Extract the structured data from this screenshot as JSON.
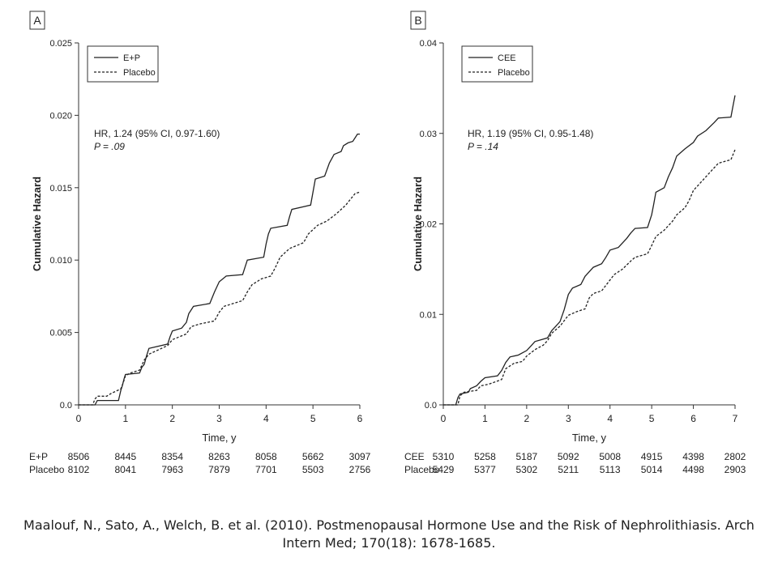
{
  "chart_data": [
    {
      "type": "line",
      "panel_label": "A",
      "xlabel": "Time, y",
      "ylabel": "Cumulative Hazard",
      "xlim": [
        0,
        6
      ],
      "ylim": [
        0,
        0.025
      ],
      "x_ticks": [
        "0",
        "1",
        "2",
        "3",
        "4",
        "5",
        "6"
      ],
      "y_ticks": [
        "0.0",
        "0.005",
        "0.010",
        "0.015",
        "0.020",
        "0.025"
      ],
      "legend": {
        "position": "top-left"
      },
      "annotation": {
        "hr": "HR, 1.24 (95% CI, 0.97-1.60)",
        "p": "P = .09"
      },
      "series": [
        {
          "name": "E+P",
          "style": "solid",
          "points": [
            [
              0,
              0
            ],
            [
              0.35,
              0
            ],
            [
              0.4,
              0.0003
            ],
            [
              0.85,
              0.0003
            ],
            [
              0.9,
              0.001
            ],
            [
              0.93,
              0.0013
            ],
            [
              0.97,
              0.0018
            ],
            [
              1.0,
              0.0021
            ],
            [
              1.3,
              0.0022
            ],
            [
              1.35,
              0.0026
            ],
            [
              1.4,
              0.0028
            ],
            [
              1.45,
              0.0034
            ],
            [
              1.5,
              0.0039
            ],
            [
              1.9,
              0.0042
            ],
            [
              1.95,
              0.0047
            ],
            [
              2.0,
              0.0051
            ],
            [
              2.2,
              0.0053
            ],
            [
              2.3,
              0.0057
            ],
            [
              2.35,
              0.0063
            ],
            [
              2.45,
              0.0068
            ],
            [
              2.8,
              0.007
            ],
            [
              2.9,
              0.0078
            ],
            [
              3.0,
              0.0085
            ],
            [
              3.15,
              0.0089
            ],
            [
              3.5,
              0.009
            ],
            [
              3.55,
              0.0095
            ],
            [
              3.6,
              0.01
            ],
            [
              3.95,
              0.0102
            ],
            [
              4.0,
              0.0111
            ],
            [
              4.05,
              0.0118
            ],
            [
              4.1,
              0.0122
            ],
            [
              4.45,
              0.0124
            ],
            [
              4.5,
              0.013
            ],
            [
              4.55,
              0.0135
            ],
            [
              4.95,
              0.0138
            ],
            [
              5.0,
              0.0147
            ],
            [
              5.05,
              0.0156
            ],
            [
              5.25,
              0.0158
            ],
            [
              5.35,
              0.0167
            ],
            [
              5.45,
              0.0173
            ],
            [
              5.6,
              0.0175
            ],
            [
              5.65,
              0.0179
            ],
            [
              5.75,
              0.0181
            ],
            [
              5.85,
              0.0182
            ],
            [
              5.95,
              0.0187
            ],
            [
              6.0,
              0.0187
            ]
          ]
        },
        {
          "name": "Placebo",
          "style": "dashed",
          "points": [
            [
              0,
              0
            ],
            [
              0.3,
              0
            ],
            [
              0.35,
              0.0004
            ],
            [
              0.4,
              0.0006
            ],
            [
              0.6,
              0.0006
            ],
            [
              0.7,
              0.0008
            ],
            [
              0.9,
              0.0011
            ],
            [
              0.95,
              0.0015
            ],
            [
              1.0,
              0.002
            ],
            [
              1.1,
              0.0022
            ],
            [
              1.3,
              0.0024
            ],
            [
              1.4,
              0.0031
            ],
            [
              1.5,
              0.0035
            ],
            [
              1.7,
              0.0038
            ],
            [
              1.9,
              0.0041
            ],
            [
              2.0,
              0.0045
            ],
            [
              2.3,
              0.0049
            ],
            [
              2.4,
              0.0054
            ],
            [
              2.6,
              0.0056
            ],
            [
              2.9,
              0.0058
            ],
            [
              3.0,
              0.0064
            ],
            [
              3.1,
              0.0068
            ],
            [
              3.3,
              0.007
            ],
            [
              3.5,
              0.0072
            ],
            [
              3.6,
              0.0078
            ],
            [
              3.7,
              0.0083
            ],
            [
              3.9,
              0.0087
            ],
            [
              4.1,
              0.0089
            ],
            [
              4.2,
              0.0095
            ],
            [
              4.3,
              0.0102
            ],
            [
              4.5,
              0.0108
            ],
            [
              4.8,
              0.0112
            ],
            [
              4.9,
              0.0118
            ],
            [
              5.1,
              0.0124
            ],
            [
              5.3,
              0.0127
            ],
            [
              5.5,
              0.0132
            ],
            [
              5.7,
              0.0138
            ],
            [
              5.8,
              0.0142
            ],
            [
              5.9,
              0.0146
            ],
            [
              6.0,
              0.0147
            ]
          ]
        }
      ],
      "risk_table": {
        "columns": [
          "8506",
          "8445",
          "8354",
          "8263",
          "8058",
          "5662",
          "3097"
        ],
        "rows": [
          {
            "label": "E+P",
            "values": [
              "8506",
              "8445",
              "8354",
              "8263",
              "8058",
              "5662",
              "3097"
            ]
          },
          {
            "label": "Placebo",
            "values": [
              "8102",
              "8041",
              "7963",
              "7879",
              "7701",
              "5503",
              "2756"
            ]
          }
        ]
      }
    },
    {
      "type": "line",
      "panel_label": "B",
      "xlabel": "Time, y",
      "ylabel": "Cumulative Hazard",
      "xlim": [
        0,
        7
      ],
      "ylim": [
        0,
        0.04
      ],
      "x_ticks": [
        "0",
        "1",
        "2",
        "3",
        "4",
        "5",
        "6",
        "7"
      ],
      "y_ticks": [
        "0.0",
        "0.01",
        "0.02",
        "0.03",
        "0.04"
      ],
      "legend": {
        "position": "top-left"
      },
      "annotation": {
        "hr": "HR, 1.19 (95% CI, 0.95-1.48)",
        "p": "P = .14"
      },
      "series": [
        {
          "name": "CEE",
          "style": "solid",
          "points": [
            [
              0,
              0
            ],
            [
              0.3,
              0
            ],
            [
              0.35,
              0.0008
            ],
            [
              0.4,
              0.0012
            ],
            [
              0.6,
              0.0014
            ],
            [
              0.65,
              0.0018
            ],
            [
              0.8,
              0.0021
            ],
            [
              0.9,
              0.0026
            ],
            [
              1.0,
              0.003
            ],
            [
              1.3,
              0.0032
            ],
            [
              1.4,
              0.0038
            ],
            [
              1.5,
              0.0047
            ],
            [
              1.6,
              0.0053
            ],
            [
              1.8,
              0.0055
            ],
            [
              2.0,
              0.006
            ],
            [
              2.1,
              0.0065
            ],
            [
              2.2,
              0.007
            ],
            [
              2.5,
              0.0074
            ],
            [
              2.6,
              0.0082
            ],
            [
              2.7,
              0.0087
            ],
            [
              2.8,
              0.0092
            ],
            [
              2.9,
              0.0105
            ],
            [
              3.0,
              0.0122
            ],
            [
              3.1,
              0.0129
            ],
            [
              3.3,
              0.0133
            ],
            [
              3.4,
              0.0142
            ],
            [
              3.6,
              0.0152
            ],
            [
              3.8,
              0.0156
            ],
            [
              3.9,
              0.0163
            ],
            [
              4.0,
              0.0171
            ],
            [
              4.2,
              0.0174
            ],
            [
              4.4,
              0.0184
            ],
            [
              4.5,
              0.019
            ],
            [
              4.6,
              0.0195
            ],
            [
              4.9,
              0.0196
            ],
            [
              5.0,
              0.021
            ],
            [
              5.05,
              0.0222
            ],
            [
              5.1,
              0.0235
            ],
            [
              5.3,
              0.024
            ],
            [
              5.4,
              0.0252
            ],
            [
              5.5,
              0.0262
            ],
            [
              5.6,
              0.0275
            ],
            [
              5.8,
              0.0283
            ],
            [
              6.0,
              0.029
            ],
            [
              6.1,
              0.0297
            ],
            [
              6.3,
              0.0303
            ],
            [
              6.5,
              0.0312
            ],
            [
              6.6,
              0.0317
            ],
            [
              6.9,
              0.0318
            ],
            [
              6.95,
              0.033
            ],
            [
              7.0,
              0.0342
            ]
          ]
        },
        {
          "name": "Placebo",
          "style": "dashed",
          "points": [
            [
              0,
              0
            ],
            [
              0.35,
              0
            ],
            [
              0.4,
              0.001
            ],
            [
              0.5,
              0.0014
            ],
            [
              0.8,
              0.0016
            ],
            [
              0.9,
              0.0021
            ],
            [
              1.1,
              0.0023
            ],
            [
              1.4,
              0.0028
            ],
            [
              1.5,
              0.004
            ],
            [
              1.7,
              0.0046
            ],
            [
              1.9,
              0.0048
            ],
            [
              2.0,
              0.0054
            ],
            [
              2.2,
              0.0061
            ],
            [
              2.4,
              0.0066
            ],
            [
              2.5,
              0.0071
            ],
            [
              2.6,
              0.0079
            ],
            [
              2.8,
              0.0087
            ],
            [
              3.0,
              0.0099
            ],
            [
              3.2,
              0.0103
            ],
            [
              3.4,
              0.0106
            ],
            [
              3.5,
              0.0118
            ],
            [
              3.6,
              0.0123
            ],
            [
              3.8,
              0.0126
            ],
            [
              4.0,
              0.0138
            ],
            [
              4.1,
              0.0144
            ],
            [
              4.3,
              0.015
            ],
            [
              4.5,
              0.0159
            ],
            [
              4.6,
              0.0163
            ],
            [
              4.9,
              0.0167
            ],
            [
              5.0,
              0.0176
            ],
            [
              5.1,
              0.0186
            ],
            [
              5.3,
              0.0193
            ],
            [
              5.5,
              0.0203
            ],
            [
              5.6,
              0.021
            ],
            [
              5.8,
              0.0218
            ],
            [
              5.9,
              0.0226
            ],
            [
              6.0,
              0.0237
            ],
            [
              6.2,
              0.0247
            ],
            [
              6.4,
              0.0257
            ],
            [
              6.6,
              0.0267
            ],
            [
              6.9,
              0.0271
            ],
            [
              7.0,
              0.0282
            ]
          ]
        }
      ],
      "risk_table": {
        "columns": [
          "5310",
          "5258",
          "5187",
          "5092",
          "5008",
          "4915",
          "4398",
          "2802"
        ],
        "rows": [
          {
            "label": "CEE",
            "values": [
              "5310",
              "5258",
              "5187",
              "5092",
              "5008",
              "4915",
              "4398",
              "2802"
            ]
          },
          {
            "label": "Placebo",
            "values": [
              "5429",
              "5377",
              "5302",
              "5211",
              "5113",
              "5014",
              "4498",
              "2903"
            ]
          }
        ]
      }
    }
  ],
  "caption": "Maalouf, N., Sato, A., Welch, B. et al. (2010). Postmenopausal Hormone Use and the Risk of Nephrolithiasis. Arch Intern Med; 170(18): 1678-1685."
}
